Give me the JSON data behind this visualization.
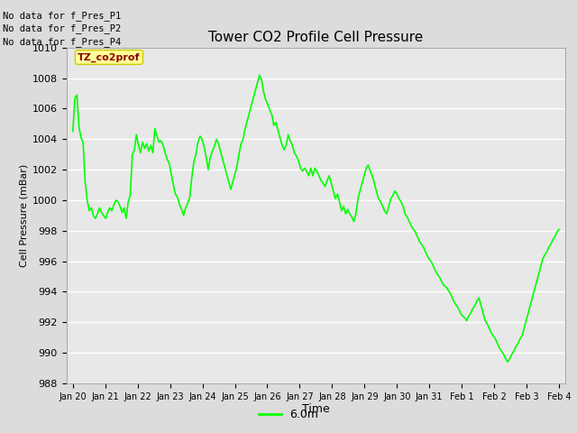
{
  "title": "Tower CO2 Profile Cell Pressure",
  "xlabel": "Time",
  "ylabel": "Cell Pressure (mBar)",
  "ylim": [
    988,
    1010
  ],
  "xlim_days": 16,
  "tick_labels": [
    "Jan 20",
    "Jan 21",
    "Jan 22",
    "Jan 23",
    "Jan 24",
    "Jan 25",
    "Jan 26",
    "Jan 27",
    "Jan 28",
    "Jan 29",
    "Jan 30",
    "Jan 31",
    "Feb 1",
    "Feb 2",
    "Feb 3",
    "Feb 4"
  ],
  "line_color": "#00FF00",
  "line_width": 1.5,
  "bg_color": "#E8E8E8",
  "fig_bg": "#DCDCDC",
  "legend_label": "6.0m",
  "no_data_texts": [
    "No data for f_Pres_P1",
    "No data for f_Pres_P2",
    "No data for f_Pres_P4"
  ],
  "tooltip_text": "TZ_co2prof",
  "tooltip_bg": "#FFFF99",
  "tooltip_border": "#CCCC00",
  "ytick_step": 2,
  "y_values": [
    1004.5,
    1006.7,
    1006.9,
    1004.8,
    1004.1,
    1003.8,
    1001.2,
    1000.0,
    999.3,
    999.5,
    999.0,
    998.8,
    999.1,
    999.5,
    999.2,
    999.0,
    998.8,
    999.2,
    999.5,
    999.3,
    999.7,
    1000.0,
    999.9,
    999.6,
    999.2,
    999.5,
    998.8,
    999.9,
    1000.3,
    1003.0,
    1003.3,
    1004.3,
    1003.6,
    1003.1,
    1003.8,
    1003.4,
    1003.7,
    1003.2,
    1003.6,
    1003.1,
    1004.7,
    1004.2,
    1003.8,
    1003.9,
    1003.6,
    1003.1,
    1002.7,
    1002.4,
    1001.7,
    1001.0,
    1000.4,
    1000.2,
    999.7,
    999.4,
    999.0,
    999.5,
    999.8,
    1000.2,
    1001.5,
    1002.5,
    1003.0,
    1003.8,
    1004.2,
    1004.0,
    1003.5,
    1002.8,
    1002.0,
    1002.8,
    1003.2,
    1003.5,
    1004.0,
    1003.7,
    1003.2,
    1002.7,
    1002.2,
    1001.7,
    1001.2,
    1000.7,
    1001.2,
    1001.7,
    1002.2,
    1003.0,
    1003.7,
    1004.0,
    1004.7,
    1005.2,
    1005.7,
    1006.2,
    1006.7,
    1007.2,
    1007.7,
    1008.2,
    1007.9,
    1007.1,
    1006.6,
    1006.3,
    1005.9,
    1005.6,
    1004.9,
    1005.1,
    1004.6,
    1004.1,
    1003.6,
    1003.3,
    1003.6,
    1004.3,
    1003.9,
    1003.6,
    1003.1,
    1002.9,
    1002.6,
    1002.1,
    1001.9,
    1002.1,
    1001.9,
    1001.6,
    1002.1,
    1001.6,
    1002.1,
    1001.9,
    1001.6,
    1001.3,
    1001.1,
    1000.9,
    1001.3,
    1001.6,
    1001.1,
    1000.6,
    1000.1,
    1000.4,
    999.9,
    999.3,
    999.6,
    999.1,
    999.4,
    999.1,
    998.9,
    998.6,
    999.1,
    1000.1,
    1000.6,
    1001.1,
    1001.6,
    1002.1,
    1002.3,
    1001.9,
    1001.6,
    1001.1,
    1000.6,
    1000.1,
    999.9,
    999.6,
    999.3,
    999.1,
    999.6,
    1000.1,
    1000.3,
    1000.6,
    1000.4,
    1000.1,
    999.9,
    999.6,
    999.1,
    998.9,
    998.6,
    998.3,
    998.1,
    997.9,
    997.6,
    997.3,
    997.1,
    996.9,
    996.6,
    996.3,
    996.1,
    995.9,
    995.6,
    995.3,
    995.1,
    994.9,
    994.6,
    994.4,
    994.3,
    994.1,
    993.9,
    993.6,
    993.3,
    993.1,
    992.9,
    992.6,
    992.4,
    992.3,
    992.1,
    992.4,
    992.6,
    992.9,
    993.1,
    993.4,
    993.6,
    993.1,
    992.6,
    992.1,
    991.9,
    991.6,
    991.3,
    991.1,
    990.9,
    990.6,
    990.3,
    990.1,
    989.9,
    989.6,
    989.4,
    989.6,
    989.9,
    990.1,
    990.4,
    990.6,
    990.9,
    991.1,
    991.6,
    992.1,
    992.6,
    993.1,
    993.6,
    994.1,
    994.6,
    995.1,
    995.6,
    996.1,
    996.4,
    996.6,
    996.9,
    997.1,
    997.4,
    997.6,
    997.9,
    998.1
  ]
}
